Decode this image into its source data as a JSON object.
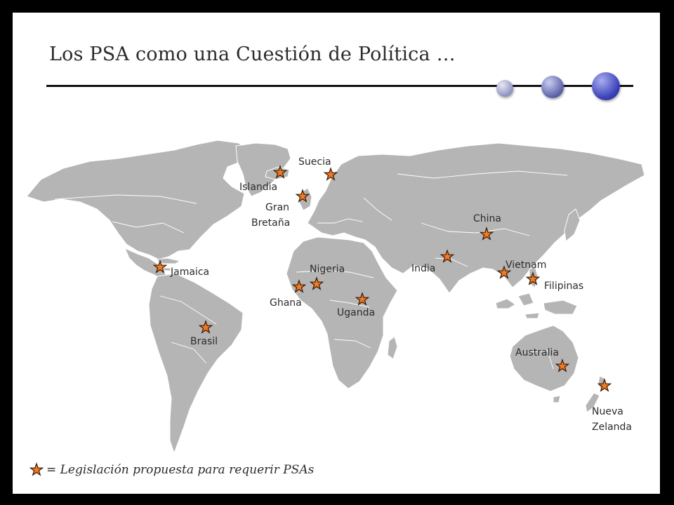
{
  "slide": {
    "title": "Los PSA como una Cuestión de Política …"
  },
  "map": {
    "markers": [
      {
        "label": "Suecia"
      },
      {
        "label": "Islandia"
      },
      {
        "label": "Gran Bretaña"
      },
      {
        "label": "China"
      },
      {
        "label": "India"
      },
      {
        "label": "Vietnam"
      },
      {
        "label": "Filipinas"
      },
      {
        "label": "Jamaica"
      },
      {
        "label": "Nigeria"
      },
      {
        "label": "Ghana"
      },
      {
        "label": "Uganda"
      },
      {
        "label": "Brasil"
      },
      {
        "label": "Australia"
      },
      {
        "label": "Nueva Zelanda"
      }
    ],
    "labels": {
      "suecia": "Suecia",
      "islandia": "Islandia",
      "gran_bretana_1": "Gran",
      "gran_bretana_2": "Bretaña",
      "china": "China",
      "india": "India",
      "vietnam": "Vietnam",
      "filipinas": "Filipinas",
      "jamaica": "Jamaica",
      "nigeria": "Nigeria",
      "ghana": "Ghana",
      "uganda": "Uganda",
      "brasil": "Brasil",
      "australia": "Australia",
      "nueva_zelanda_1": "Nueva",
      "nueva_zelanda_2": "Zelanda"
    },
    "colors": {
      "land": "#b5b5b5",
      "marker": "#f07a22"
    }
  },
  "legend": {
    "text": "= Legislación propuesta para requerir PSAs",
    "icon": "star-icon"
  }
}
